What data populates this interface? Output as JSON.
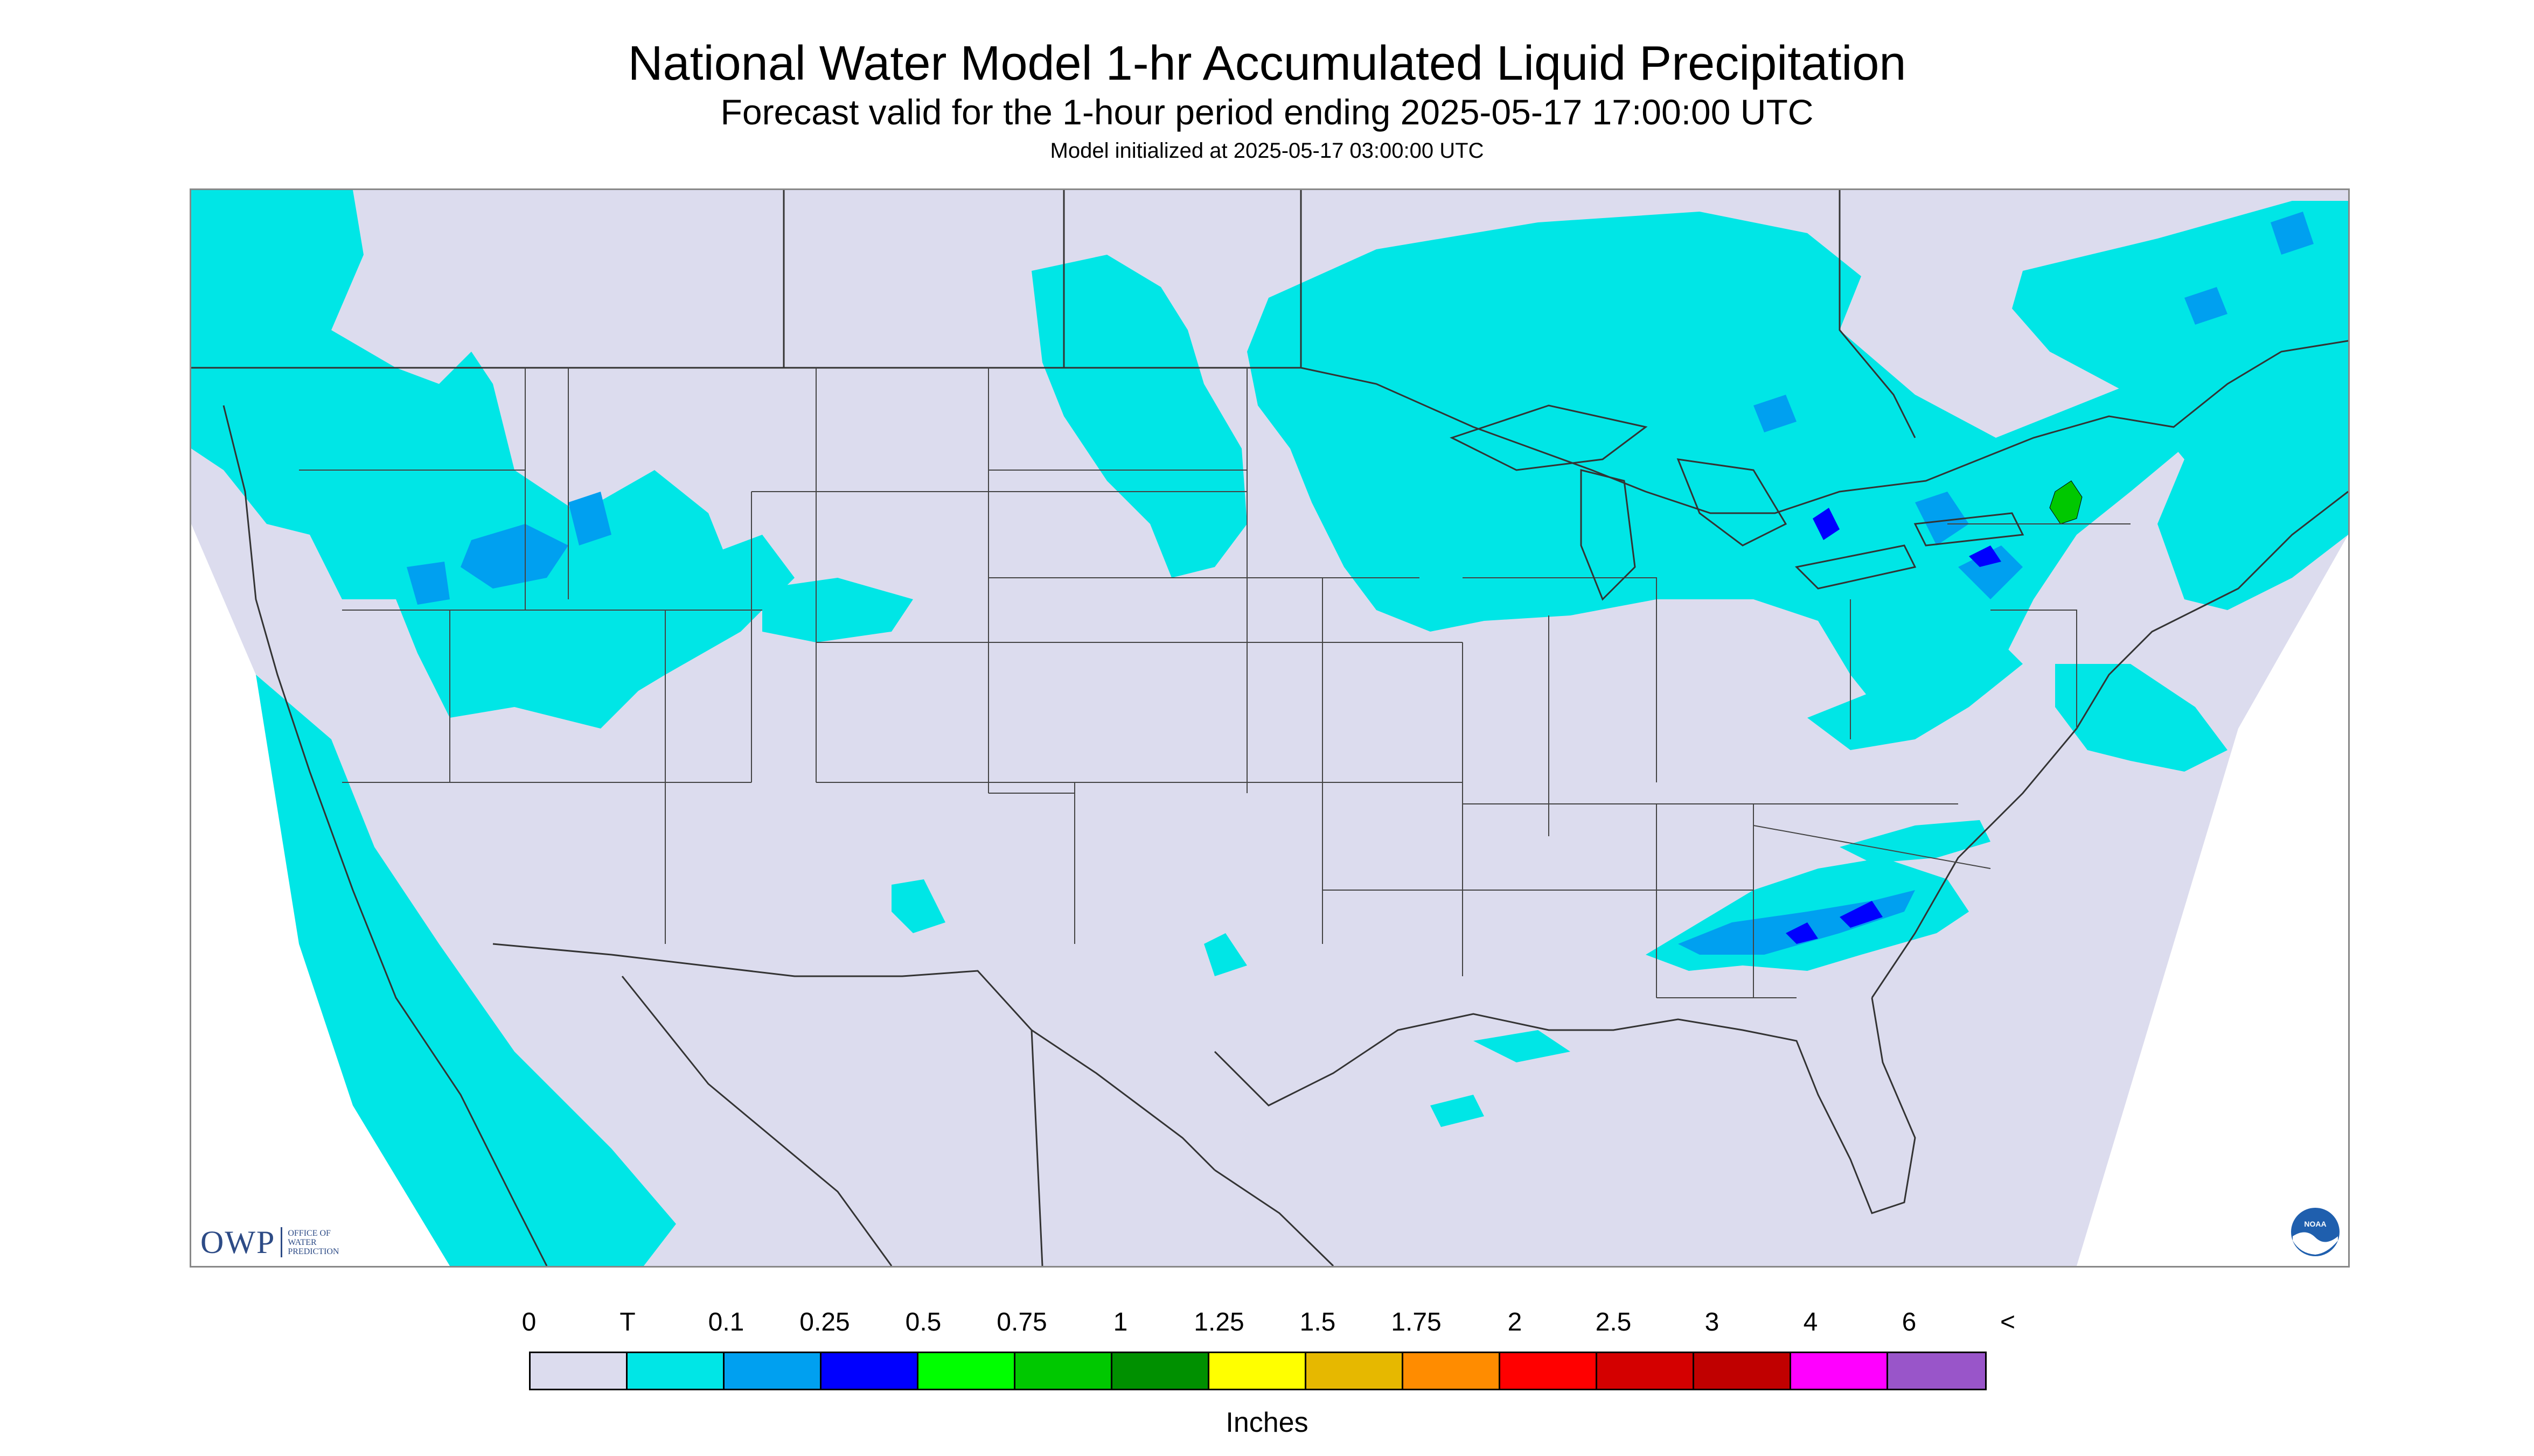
{
  "header": {
    "title": "National Water Model 1-hr Accumulated Liquid Precipitation",
    "subtitle": "Forecast valid for the 1-hour period ending 2025-05-17 17:00:00 UTC",
    "init": "Model initialized at 2025-05-17 03:00:00 UTC"
  },
  "logos": {
    "owp_big": "OWP",
    "owp_small": [
      "OFFICE OF",
      "WATER",
      "PREDICTION"
    ],
    "noaa": "NOAA"
  },
  "legend": {
    "labels": [
      "0",
      "T",
      "0.1",
      "0.25",
      "0.5",
      "0.75",
      "1",
      "1.25",
      "1.5",
      "1.75",
      "2",
      "2.5",
      "3",
      "4",
      "6",
      "<"
    ],
    "colors": [
      "#dcdcee",
      "#00e6e6",
      "#00a0f0",
      "#0000ff",
      "#00ff00",
      "#00c800",
      "#009000",
      "#ffff00",
      "#e6b800",
      "#ff8c00",
      "#ff0000",
      "#d40000",
      "#c00000",
      "#ff00ff",
      "#9955c9"
    ],
    "units": "Inches"
  },
  "map": {
    "background": "#dcdcee",
    "precip_light": "#00e6e6",
    "precip_mod": "#00a0f0",
    "precip_heavy": "#0000ff",
    "precip_green": "#00c800"
  }
}
